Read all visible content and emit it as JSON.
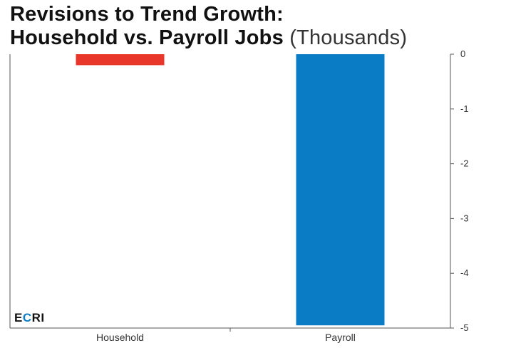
{
  "title": {
    "line1": "Revisions to Trend Growth:",
    "line2": "Household vs. Payroll Jobs",
    "unit": "(Thousands)"
  },
  "logo": {
    "first": "E",
    "accent": "C",
    "rest": "RI"
  },
  "chart_data": {
    "type": "bar",
    "title": "Revisions to Trend Growth: Household vs. Payroll Jobs (Thousands)",
    "xlabel": "",
    "ylabel": "",
    "categories": [
      "Household",
      "Payroll"
    ],
    "values": [
      -0.2,
      -4.95
    ],
    "colors": [
      "#e8372a",
      "#0a7cc6"
    ],
    "ylim": [
      -5,
      0
    ],
    "yticks": [
      0,
      -1,
      -2,
      -3,
      -4,
      -5
    ],
    "ytick_labels": [
      "0",
      "-1",
      "-2",
      "-3",
      "-4",
      "-5"
    ],
    "y_axis_side": "right",
    "grid": false,
    "legend": "none"
  }
}
